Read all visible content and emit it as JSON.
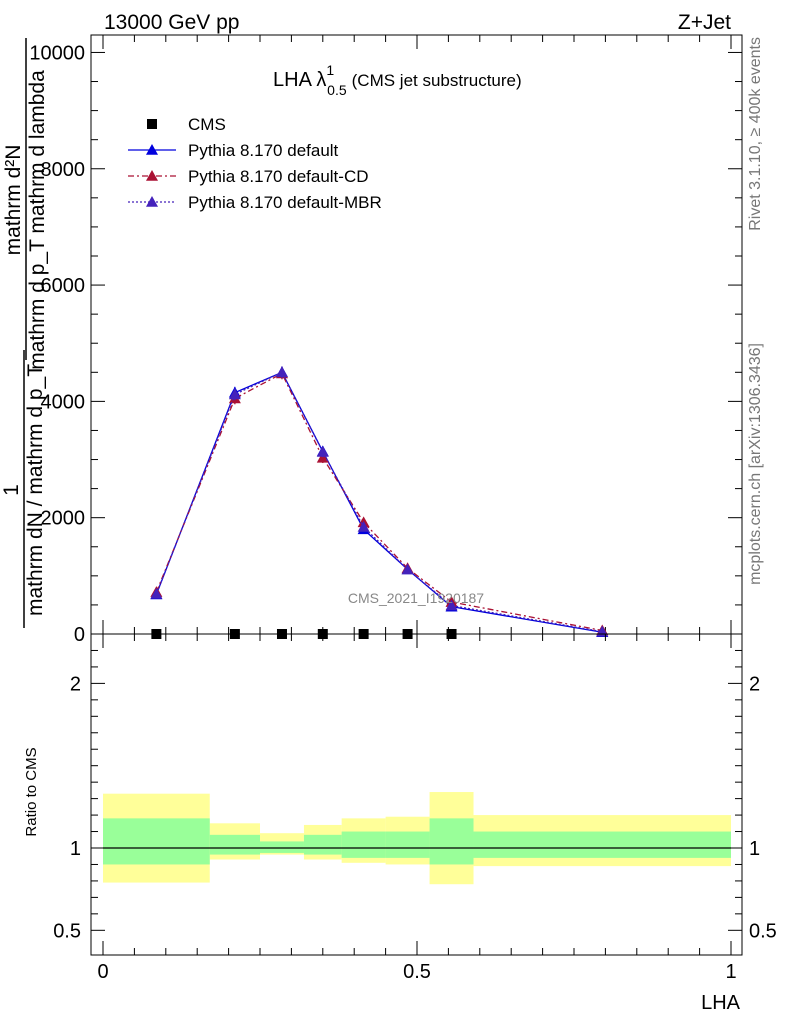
{
  "header": {
    "left": "13000 GeV pp",
    "right": "Z+Jet"
  },
  "side_labels": {
    "rivet": "Rivet 3.1.10, ≥ 400k events",
    "mcplots": "mcplots.cern.ch [arXiv:1306.3436]"
  },
  "chart_data": [
    {
      "type": "line",
      "panel": "main",
      "title": "LHA λ",
      "title_sup": "1",
      "title_sub": "0.5",
      "title_suffix": "(CMS jet substructure)",
      "watermark": "CMS_2021_I1920187",
      "xlabel": "LHA",
      "ylabel_numerator": "1",
      "ylabel_denominator": "mathrm dN / mathrm d p_T mathrm d p_T mathrm dN mathrm d lambda",
      "ylabel_lines": [
        "mathrm d²N",
        "mathrm d p_T mathrm d lambda",
        "mathrm dN / mathrm d p_T",
        "1"
      ],
      "xlim": [
        0,
        1
      ],
      "ylim": [
        0,
        10300
      ],
      "yticks": [
        {
          "value": 0,
          "label": "0"
        },
        {
          "value": 2000,
          "label": "2000"
        },
        {
          "value": 4000,
          "label": "4000"
        },
        {
          "value": 6000,
          "label": "6000"
        },
        {
          "value": 8000,
          "label": "8000"
        },
        {
          "value": 10000,
          "label": "10000"
        }
      ],
      "bin_edges": [
        0,
        0.17,
        0.25,
        0.32,
        0.38,
        0.45,
        0.52,
        0.59,
        1.0
      ],
      "legend": [
        {
          "name": "CMS",
          "style": "square"
        },
        {
          "name": "Pythia 8.170 default",
          "style": "solid"
        },
        {
          "name": "Pythia 8.170 default-CD",
          "style": "dashdot"
        },
        {
          "name": "Pythia 8.170 default-MBR",
          "style": "dotted"
        }
      ],
      "series": [
        {
          "name": "CMS",
          "color": "#000000",
          "x": [
            0.085,
            0.21,
            0.285,
            0.35,
            0.415,
            0.485,
            0.555
          ],
          "values": [
            0,
            0,
            0,
            0,
            0,
            0,
            0
          ]
        },
        {
          "name": "Pythia 8.170 default",
          "color": "#0000dd",
          "x": [
            0.085,
            0.21,
            0.285,
            0.35,
            0.415,
            0.485,
            0.555,
            0.795
          ],
          "values": [
            680,
            4150,
            4500,
            3140,
            1800,
            1110,
            470,
            30
          ],
          "errors": [
            40,
            100,
            100,
            90,
            60,
            50,
            30,
            10
          ]
        },
        {
          "name": "Pythia 8.170 default-CD",
          "color": "#aa1133",
          "x": [
            0.085,
            0.21,
            0.285,
            0.35,
            0.415,
            0.485,
            0.555,
            0.795
          ],
          "values": [
            720,
            4050,
            4480,
            3030,
            1920,
            1130,
            550,
            60
          ],
          "errors": [
            40,
            100,
            100,
            90,
            60,
            50,
            30,
            10
          ]
        },
        {
          "name": "Pythia 8.170 default-MBR",
          "color": "#4422bb",
          "x": [
            0.085,
            0.21,
            0.285,
            0.35,
            0.415,
            0.485,
            0.555,
            0.795
          ],
          "values": [
            690,
            4120,
            4500,
            3130,
            1840,
            1110,
            490,
            40
          ],
          "errors": [
            40,
            100,
            100,
            90,
            60,
            50,
            30,
            10
          ]
        }
      ]
    },
    {
      "type": "area",
      "panel": "ratio",
      "ylabel": "Ratio to CMS",
      "xlabel": "LHA",
      "xlim": [
        0,
        1
      ],
      "ylim": [
        0.35,
        2.3
      ],
      "yticks": [
        {
          "value": 0.5,
          "label": "0.5"
        },
        {
          "value": 1,
          "label": "1"
        },
        {
          "value": 2,
          "label": "2"
        }
      ],
      "xticks": [
        {
          "value": 0,
          "label": "0"
        },
        {
          "value": 0.5,
          "label": "0.5"
        },
        {
          "value": 1,
          "label": "1"
        }
      ],
      "reference_line": 1,
      "band_colors": {
        "inner": "#99ff99",
        "outer": "#ffff99"
      },
      "bands": [
        {
          "xlow": 0.0,
          "xhigh": 0.17,
          "inner": [
            0.9,
            1.18
          ],
          "outer": [
            0.79,
            1.33
          ]
        },
        {
          "xlow": 0.17,
          "xhigh": 0.25,
          "inner": [
            0.96,
            1.08
          ],
          "outer": [
            0.93,
            1.15
          ]
        },
        {
          "xlow": 0.25,
          "xhigh": 0.32,
          "inner": [
            0.97,
            1.04
          ],
          "outer": [
            0.96,
            1.09
          ]
        },
        {
          "xlow": 0.32,
          "xhigh": 0.38,
          "inner": [
            0.96,
            1.08
          ],
          "outer": [
            0.93,
            1.14
          ]
        },
        {
          "xlow": 0.38,
          "xhigh": 0.45,
          "inner": [
            0.94,
            1.1
          ],
          "outer": [
            0.91,
            1.18
          ]
        },
        {
          "xlow": 0.45,
          "xhigh": 0.52,
          "inner": [
            0.94,
            1.1
          ],
          "outer": [
            0.9,
            1.19
          ]
        },
        {
          "xlow": 0.52,
          "xhigh": 0.59,
          "inner": [
            0.9,
            1.18
          ],
          "outer": [
            0.78,
            1.34
          ]
        },
        {
          "xlow": 0.59,
          "xhigh": 1.0,
          "inner": [
            0.94,
            1.1
          ],
          "outer": [
            0.89,
            1.2
          ]
        }
      ]
    }
  ]
}
